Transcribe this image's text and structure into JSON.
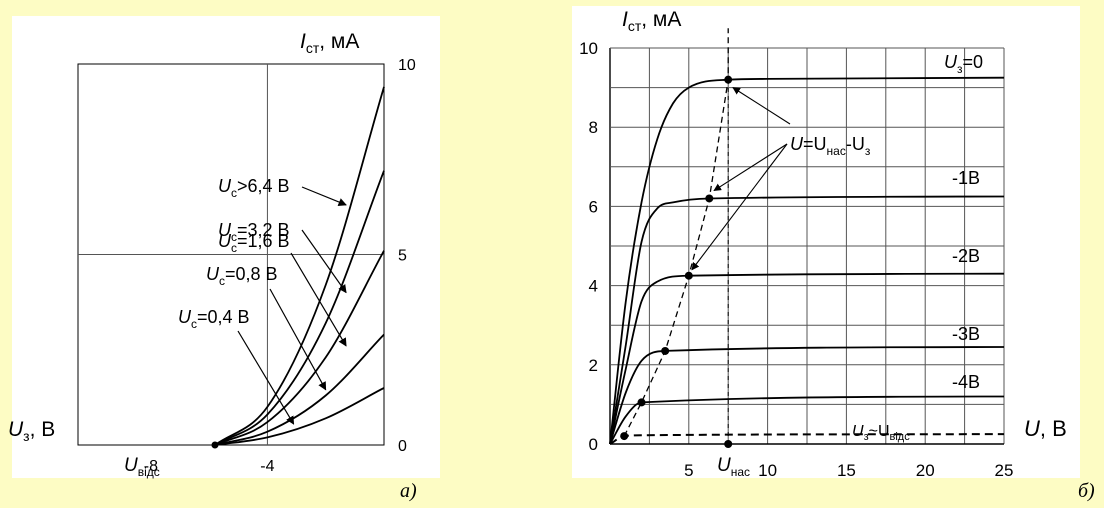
{
  "colors": {
    "background": "#fdfcc4",
    "panel": "#ffffff",
    "ink": "#000000",
    "grid": "#555555"
  },
  "panel_a": {
    "letter": "а)",
    "y_axis_name": "I",
    "y_axis_sub": "ст",
    "y_axis_unit": ", мА",
    "x_axis_name": "U",
    "x_axis_sub": "з",
    "x_axis_unit": ", В",
    "cutoff_label_main": "U",
    "cutoff_label_sub": "відс"
  },
  "panel_b": {
    "letter": "б)",
    "y_axis_name": "I",
    "y_axis_sub": "ст",
    "y_axis_unit": ", мА",
    "x_axis_name": "U",
    "x_axis_unit": ", В",
    "sat_label_main": "U",
    "sat_label_sub": "нас",
    "formula": {
      "a": "U",
      "b": "=U",
      "b_sub": "нас",
      "c": "-U",
      "c_sub": "з"
    },
    "cutoff_curve_label": {
      "a": "U",
      "a_sub": "з",
      "b": "~U",
      "b_sub": "відс"
    }
  },
  "chart_data": [
    {
      "type": "line",
      "title": "",
      "xlabel": "U_з, В",
      "ylabel": "I_ст, мА",
      "xlim": [
        -10.5,
        0
      ],
      "ylim": [
        0,
        10
      ],
      "x_ticks": [
        -8,
        -4
      ],
      "y_ticks": [
        0,
        5,
        10
      ],
      "grid": true,
      "series": [
        {
          "name": "U_c>6,4 В",
          "label_main": "U",
          "label_sub": "c",
          "label_rest": ">6,4 В",
          "x": [
            -5.8,
            -4,
            -2,
            0
          ],
          "y": [
            0,
            1.0,
            4.2,
            9.4
          ]
        },
        {
          "name": "U_c=3,2 В",
          "label_main": "U",
          "label_sub": "c",
          "label_rest": "=3,2 В",
          "x": [
            -5.8,
            -4,
            -2,
            0
          ],
          "y": [
            0,
            0.8,
            3.2,
            7.2
          ]
        },
        {
          "name": "U_c=1,6 В",
          "label_main": "U",
          "label_sub": "c",
          "label_rest": "=1,6 В",
          "x": [
            -5.8,
            -4,
            -2,
            0
          ],
          "y": [
            0,
            0.6,
            2.3,
            5.1
          ]
        },
        {
          "name": "U_c=0,8 В",
          "label_main": "U",
          "label_sub": "c",
          "label_rest": "=0,8 В",
          "x": [
            -5.8,
            -4,
            -2,
            0
          ],
          "y": [
            0,
            0.35,
            1.3,
            2.9
          ]
        },
        {
          "name": "U_c=0,4 В",
          "label_main": "U",
          "label_sub": "c",
          "label_rest": "=0,4 В",
          "x": [
            -5.8,
            -4,
            -2,
            0
          ],
          "y": [
            0,
            0.2,
            0.7,
            1.5
          ]
        }
      ],
      "points": [
        {
          "label": "U_відс",
          "x": -5.8,
          "y": 0
        }
      ]
    },
    {
      "type": "line",
      "title": "",
      "xlabel": "U, В",
      "ylabel": "I_ст, мА",
      "xlim": [
        0,
        25
      ],
      "ylim": [
        0,
        10
      ],
      "x_ticks": [
        5,
        10,
        15,
        20,
        25
      ],
      "y_ticks": [
        0,
        2,
        4,
        6,
        8,
        10
      ],
      "grid": true,
      "series": [
        {
          "name": "U_з=0",
          "label_main": "U",
          "label_sub": "з",
          "label_rest": "=0",
          "x": [
            0,
            1,
            2,
            3,
            4,
            5,
            7.5,
            10,
            25
          ],
          "y": [
            0,
            3.6,
            6.1,
            7.7,
            8.6,
            9.0,
            9.2,
            9.22,
            9.25
          ]
        },
        {
          "name": "-1В",
          "label_main": "-1В",
          "x": [
            0,
            1,
            2,
            3,
            4,
            6.3,
            25
          ],
          "y": [
            0,
            2.5,
            5.1,
            5.95,
            6.1,
            6.2,
            6.25
          ]
        },
        {
          "name": "-2В",
          "label_main": "-2В",
          "x": [
            0,
            1,
            2,
            3,
            5,
            25
          ],
          "y": [
            0,
            1.9,
            3.6,
            4.1,
            4.25,
            4.3
          ]
        },
        {
          "name": "-3В",
          "label_main": "-3В",
          "x": [
            0,
            1,
            2,
            3.5,
            25
          ],
          "y": [
            0,
            1.3,
            2.1,
            2.35,
            2.45
          ]
        },
        {
          "name": "-4В",
          "label_main": "-4В",
          "x": [
            0,
            1,
            2,
            25
          ],
          "y": [
            0,
            0.7,
            1.05,
            1.2
          ]
        },
        {
          "name": "U_з~U_відс",
          "label_main": "U",
          "label_sub": "з",
          "label_rest": "~U",
          "label_sub2": "відс",
          "style": "dashed",
          "x": [
            0,
            0.9,
            2,
            25
          ],
          "y": [
            0,
            0.2,
            0.22,
            0.25
          ]
        },
        {
          "name": "U=U_нас-U_з",
          "style": "dashed",
          "x": [
            0.9,
            2,
            3.5,
            5,
            6.3,
            7.5,
            7.5
          ],
          "y": [
            0.2,
            1.05,
            2.35,
            4.25,
            6.2,
            9.2,
            10.5
          ]
        }
      ],
      "points": [
        {
          "x": 7.5,
          "y": 9.2
        },
        {
          "x": 6.3,
          "y": 6.2
        },
        {
          "x": 5,
          "y": 4.25
        },
        {
          "x": 3.5,
          "y": 2.35
        },
        {
          "x": 2,
          "y": 1.05
        },
        {
          "x": 0.9,
          "y": 0.2
        },
        {
          "label": "U_нас",
          "x": 7.5,
          "y": 0
        }
      ]
    }
  ]
}
